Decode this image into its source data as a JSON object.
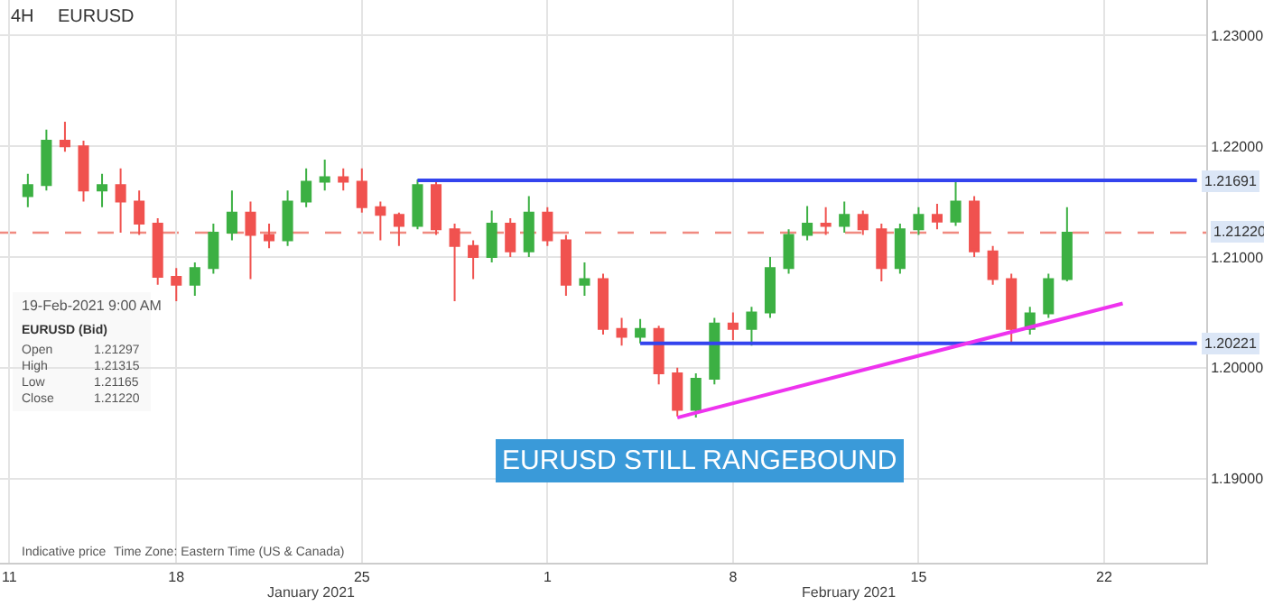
{
  "chart_data": {
    "type": "candlestick",
    "title": "4H",
    "subtitle": "EURUSD",
    "categories": [
      "11",
      null,
      null,
      null,
      null,
      null,
      null,
      null,
      null,
      "18",
      null,
      null,
      null,
      null,
      null,
      null,
      null,
      null,
      null,
      "25",
      null,
      null,
      null,
      null,
      null,
      null,
      null,
      null,
      null,
      "1",
      null,
      null,
      null,
      null,
      null,
      null,
      null,
      null,
      null,
      "8",
      null,
      null,
      null,
      null,
      null,
      null,
      null,
      null,
      null,
      "15",
      null,
      null,
      null,
      null,
      null,
      null,
      null,
      null,
      null,
      "22",
      null,
      null,
      null,
      null,
      null
    ],
    "ohlc": [
      null,
      [
        1.2155,
        1.2175,
        1.2145,
        1.2165
      ],
      [
        1.2165,
        1.2215,
        1.216,
        1.2205
      ],
      [
        1.2205,
        1.2222,
        1.2195,
        1.22
      ],
      [
        1.22,
        1.2205,
        1.215,
        1.216
      ],
      [
        1.216,
        1.2175,
        1.2145,
        1.2165
      ],
      [
        1.2165,
        1.218,
        1.2122,
        1.215
      ],
      [
        1.215,
        1.216,
        1.212,
        1.213
      ],
      [
        1.213,
        1.2135,
        1.2075,
        1.2082
      ],
      [
        1.2082,
        1.209,
        1.206,
        1.2075
      ],
      [
        1.2075,
        1.2095,
        1.2065,
        1.209
      ],
      [
        1.209,
        1.213,
        1.2085,
        1.2122
      ],
      [
        1.2122,
        1.216,
        1.2115,
        1.214
      ],
      [
        1.214,
        1.215,
        1.208,
        1.212
      ],
      [
        1.212,
        1.213,
        1.2108,
        1.2115
      ],
      [
        1.2115,
        1.216,
        1.211,
        1.215
      ],
      [
        1.215,
        1.218,
        1.2145,
        1.2168
      ],
      [
        1.2168,
        1.2188,
        1.216,
        1.2172
      ],
      [
        1.2172,
        1.218,
        1.216,
        1.2168
      ],
      [
        1.2168,
        1.218,
        1.214,
        1.2145
      ],
      [
        1.2145,
        1.215,
        1.2115,
        1.2138
      ],
      [
        1.2138,
        1.214,
        1.211,
        1.2128
      ],
      [
        1.2128,
        1.217,
        1.2125,
        1.2165
      ],
      [
        1.2165,
        1.2169,
        1.212,
        1.2125
      ],
      [
        1.2125,
        1.213,
        1.206,
        1.211
      ],
      [
        1.211,
        1.2115,
        1.208,
        1.21
      ],
      [
        1.21,
        1.2142,
        1.2095,
        1.213
      ],
      [
        1.213,
        1.2135,
        1.21,
        1.2105
      ],
      [
        1.2105,
        1.2155,
        1.21,
        1.214
      ],
      [
        1.214,
        1.2145,
        1.211,
        1.2115
      ],
      [
        1.2115,
        1.212,
        1.2065,
        1.2075
      ],
      [
        1.2075,
        1.2095,
        1.2065,
        1.208
      ],
      [
        1.208,
        1.2085,
        1.203,
        1.2035
      ],
      [
        1.2035,
        1.2045,
        1.202,
        1.2028
      ],
      [
        1.2028,
        1.2044,
        1.2022,
        1.2035
      ],
      [
        1.2035,
        1.2038,
        1.1985,
        1.1995
      ],
      [
        1.1995,
        1.2,
        1.1956,
        1.1962
      ],
      [
        1.1962,
        1.1995,
        1.1955,
        1.199
      ],
      [
        1.199,
        1.2045,
        1.1985,
        1.204
      ],
      [
        1.204,
        1.205,
        1.2025,
        1.2035
      ],
      [
        1.2035,
        1.2055,
        1.202,
        1.205
      ],
      [
        1.205,
        1.21,
        1.2045,
        1.209
      ],
      [
        1.209,
        1.2125,
        1.2085,
        1.212
      ],
      [
        1.212,
        1.2146,
        1.2115,
        1.213
      ],
      [
        1.213,
        1.2145,
        1.212,
        1.2128
      ],
      [
        1.2128,
        1.215,
        1.2122,
        1.2138
      ],
      [
        1.2138,
        1.2142,
        1.212,
        1.2125
      ],
      [
        1.2125,
        1.213,
        1.2078,
        1.209
      ],
      [
        1.209,
        1.213,
        1.2085,
        1.2125
      ],
      [
        1.2125,
        1.2145,
        1.212,
        1.2138
      ],
      [
        1.2138,
        1.2148,
        1.2125,
        1.2132
      ],
      [
        1.2132,
        1.2169,
        1.2128,
        1.215
      ],
      [
        1.215,
        1.2155,
        1.21,
        1.2105
      ],
      [
        1.2105,
        1.211,
        1.2075,
        1.208
      ],
      [
        1.208,
        1.2085,
        1.2023,
        1.2035
      ],
      [
        1.2035,
        1.2055,
        1.203,
        1.2049
      ],
      [
        1.2049,
        1.2085,
        1.2045,
        1.208
      ],
      [
        1.208,
        1.2145,
        1.2078,
        1.2122
      ],
      null,
      null,
      null,
      null,
      null,
      null,
      null
    ],
    "colors": [
      null,
      "#3cb043",
      "#3cb043",
      "#f0524f",
      "#f0524f",
      "#3cb043",
      "#f0524f",
      "#f0524f",
      "#f0524f",
      "#f0524f",
      "#3cb043",
      "#3cb043",
      "#3cb043",
      "#f0524f",
      "#f0524f",
      "#3cb043",
      "#3cb043",
      "#3cb043",
      "#f0524f",
      "#f0524f",
      "#f0524f",
      "#f0524f",
      "#3cb043",
      "#f0524f",
      "#f0524f",
      "#f0524f",
      "#3cb043",
      "#f0524f",
      "#3cb043",
      "#f0524f",
      "#f0524f",
      "#3cb043",
      "#f0524f",
      "#f0524f",
      "#3cb043",
      "#f0524f",
      "#f0524f",
      "#3cb043",
      "#3cb043",
      "#f0524f",
      "#3cb043",
      "#3cb043",
      "#3cb043",
      "#3cb043",
      "#f0524f",
      "#3cb043",
      "#f0524f",
      "#f0524f",
      "#3cb043",
      "#3cb043",
      "#f0524f",
      "#3cb043",
      "#f0524f",
      "#f0524f",
      "#f0524f",
      "#3cb043",
      "#3cb043",
      "#3cb043",
      null,
      null,
      null,
      null,
      null,
      null,
      null
    ],
    "series": [
      {
        "type": "line",
        "color": "#3344ee",
        "values": [
          null,
          null,
          null,
          null,
          null,
          null,
          null,
          null,
          null,
          null,
          null,
          null,
          null,
          null,
          null,
          null,
          null,
          null,
          null,
          null,
          null,
          null,
          1.21691,
          null,
          null,
          null,
          null,
          null,
          null,
          null,
          null,
          null,
          null,
          null,
          null,
          null,
          null,
          null,
          null,
          null,
          null,
          null,
          null,
          null,
          null,
          null,
          null,
          null,
          null,
          null,
          null,
          null,
          null,
          null,
          null,
          null,
          null,
          null,
          null,
          null,
          null,
          null,
          null,
          null,
          1.21691
        ],
        "value_labels": [
          null,
          null,
          null,
          null,
          null,
          null,
          null,
          null,
          null,
          null,
          null,
          null,
          null,
          null,
          null,
          null,
          null,
          null,
          null,
          null,
          null,
          null,
          null,
          null,
          null,
          null,
          null,
          null,
          null,
          null,
          null,
          null,
          null,
          null,
          null,
          null,
          null,
          null,
          null,
          null,
          null,
          null,
          null,
          null,
          null,
          null,
          null,
          null,
          null,
          null,
          null,
          null,
          null,
          null,
          null,
          null,
          null,
          null,
          null,
          null,
          null,
          null,
          null,
          null,
          "1.21691"
        ]
      },
      {
        "type": "line",
        "color": "#3344ee",
        "values": [
          null,
          null,
          null,
          null,
          null,
          null,
          null,
          null,
          null,
          null,
          null,
          null,
          null,
          null,
          null,
          null,
          null,
          null,
          null,
          null,
          null,
          null,
          null,
          null,
          null,
          null,
          null,
          null,
          null,
          null,
          null,
          null,
          null,
          null,
          1.20221,
          null,
          null,
          null,
          null,
          null,
          null,
          null,
          null,
          null,
          null,
          null,
          null,
          null,
          null,
          null,
          null,
          null,
          null,
          null,
          null,
          null,
          null,
          null,
          null,
          null,
          null,
          null,
          null,
          null,
          1.20221
        ],
        "value_labels": [
          null,
          null,
          null,
          null,
          null,
          null,
          null,
          null,
          null,
          null,
          null,
          null,
          null,
          null,
          null,
          null,
          null,
          null,
          null,
          null,
          null,
          null,
          null,
          null,
          null,
          null,
          null,
          null,
          null,
          null,
          null,
          null,
          null,
          null,
          null,
          null,
          null,
          null,
          null,
          null,
          null,
          null,
          null,
          null,
          null,
          null,
          null,
          null,
          null,
          null,
          null,
          null,
          null,
          null,
          null,
          null,
          null,
          null,
          null,
          null,
          null,
          null,
          null,
          null,
          "1.20221"
        ]
      },
      {
        "type": "line",
        "color": "#ee33ee",
        "values": [
          null,
          null,
          null,
          null,
          null,
          null,
          null,
          null,
          null,
          null,
          null,
          null,
          null,
          null,
          null,
          null,
          null,
          null,
          null,
          null,
          null,
          null,
          null,
          null,
          null,
          null,
          null,
          null,
          null,
          null,
          null,
          null,
          null,
          null,
          null,
          null,
          1.1955,
          null,
          null,
          null,
          null,
          null,
          null,
          null,
          null,
          null,
          null,
          null,
          null,
          null,
          null,
          null,
          null,
          null,
          null,
          null,
          null,
          null,
          null,
          null,
          1.2058,
          null,
          null,
          null,
          null
        ]
      }
    ],
    "ref_lines": [
      {
        "axis": "y",
        "value": 1.2122,
        "label": "1.21220",
        "color": "#f08a80",
        "line_style": "dashed"
      }
    ],
    "ylim": [
      1.1824,
      1.2332
    ],
    "yticks": [
      {
        "value": 1.19,
        "label": "1.19000"
      },
      {
        "value": 1.2,
        "label": "1.20000"
      },
      {
        "value": 1.21,
        "label": "1.21000"
      },
      {
        "value": 1.22,
        "label": "1.22000"
      },
      {
        "value": 1.23,
        "label": "1.23000"
      }
    ],
    "grid": true,
    "annotations": [
      "January 2021",
      "February 2021",
      "19-Feb-2021 9:00 AM",
      "EURUSD (Bid)",
      "Open",
      "1.21297",
      "High",
      "1.21315",
      "Low",
      "1.21165",
      "Close",
      "1.21220",
      "Indicative price",
      "Time Zone: Eastern Time (US & Canada)",
      "EURUSD STILL RANGEBOUND"
    ]
  }
}
